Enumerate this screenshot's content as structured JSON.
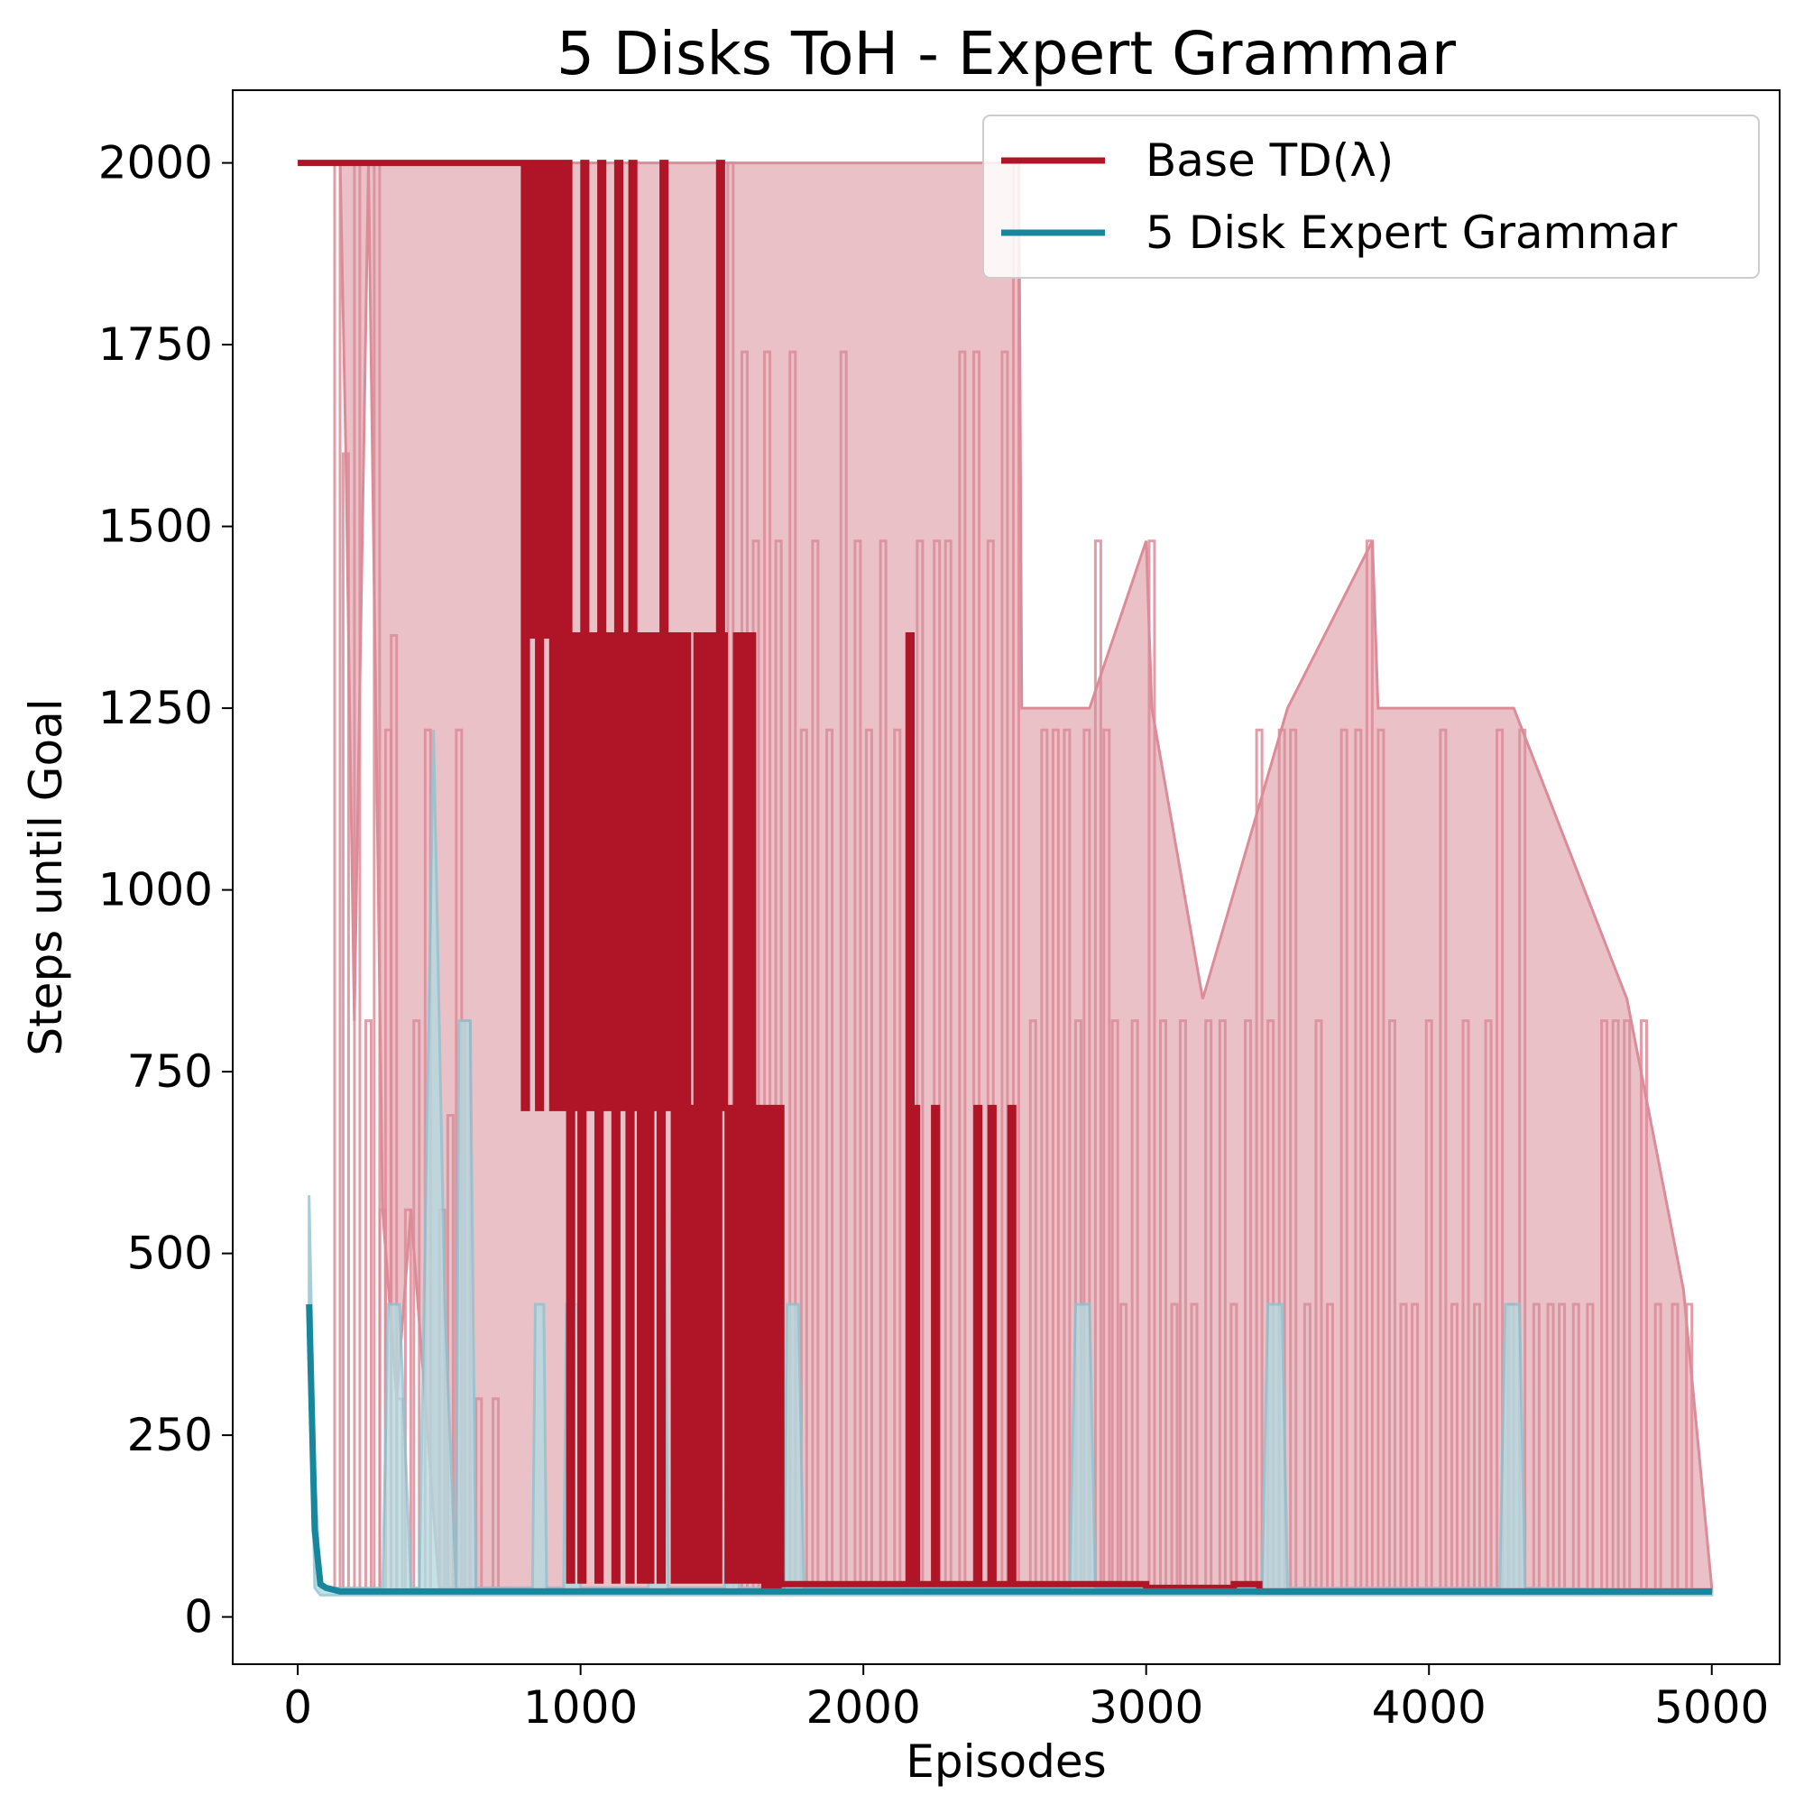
{
  "colors": {
    "base": "#b01427",
    "base_band": "#eac1c7",
    "base_band_line": "#dc8c99",
    "expert": "#17879e",
    "expert_band": "#b3dbe1",
    "expert_band_line": "#8cc4d0",
    "axes": "#000000",
    "background": "#ffffff"
  },
  "chart_data": {
    "type": "line",
    "title": "5 Disks ToH - Expert Grammar",
    "xlabel": "Episodes",
    "ylabel": "Steps until Goal",
    "xlim": [
      -230,
      5240
    ],
    "ylim": [
      -65,
      2100
    ],
    "xticks": [
      0,
      1000,
      2000,
      3000,
      4000,
      5000
    ],
    "yticks": [
      0,
      250,
      500,
      750,
      1000,
      1250,
      1500,
      1750,
      2000
    ],
    "grid": false,
    "legend_position": "top-right",
    "series": [
      {
        "name": "Base TD(λ)",
        "color_key": "base",
        "mean": [
          [
            0,
            2000
          ],
          [
            790,
            2000
          ],
          [
            800,
            700
          ],
          [
            810,
            1350
          ],
          [
            820,
            2000
          ],
          [
            830,
            1350
          ],
          [
            840,
            2000
          ],
          [
            850,
            700
          ],
          [
            860,
            1350
          ],
          [
            870,
            2000
          ],
          [
            880,
            1350
          ],
          [
            890,
            2000
          ],
          [
            900,
            700
          ],
          [
            910,
            1350
          ],
          [
            920,
            2000
          ],
          [
            930,
            700
          ],
          [
            940,
            1350
          ],
          [
            950,
            2000
          ],
          [
            960,
            50
          ],
          [
            970,
            1350
          ],
          [
            980,
            700
          ],
          [
            990,
            1350
          ],
          [
            1000,
            50
          ],
          [
            1010,
            2000
          ],
          [
            1020,
            700
          ],
          [
            1030,
            1350
          ],
          [
            1040,
            700
          ],
          [
            1050,
            1350
          ],
          [
            1060,
            50
          ],
          [
            1070,
            2000
          ],
          [
            1080,
            700
          ],
          [
            1090,
            1350
          ],
          [
            1100,
            700
          ],
          [
            1110,
            1350
          ],
          [
            1120,
            50
          ],
          [
            1130,
            2000
          ],
          [
            1140,
            1350
          ],
          [
            1150,
            700
          ],
          [
            1160,
            1350
          ],
          [
            1170,
            50
          ],
          [
            1180,
            2000
          ],
          [
            1190,
            700
          ],
          [
            1200,
            1350
          ],
          [
            1210,
            50
          ],
          [
            1220,
            700
          ],
          [
            1230,
            1350
          ],
          [
            1240,
            50
          ],
          [
            1250,
            700
          ],
          [
            1260,
            1350
          ],
          [
            1270,
            700
          ],
          [
            1280,
            50
          ],
          [
            1290,
            2000
          ],
          [
            1300,
            700
          ],
          [
            1310,
            1350
          ],
          [
            1320,
            700
          ],
          [
            1330,
            50
          ],
          [
            1340,
            1350
          ],
          [
            1350,
            700
          ],
          [
            1360,
            50
          ],
          [
            1370,
            1350
          ],
          [
            1380,
            700
          ],
          [
            1390,
            50
          ],
          [
            1400,
            700
          ],
          [
            1410,
            1350
          ],
          [
            1420,
            50
          ],
          [
            1430,
            700
          ],
          [
            1440,
            1350
          ],
          [
            1450,
            50
          ],
          [
            1460,
            700
          ],
          [
            1470,
            1350
          ],
          [
            1480,
            50
          ],
          [
            1490,
            2000
          ],
          [
            1500,
            1350
          ],
          [
            1510,
            700
          ],
          [
            1520,
            50
          ],
          [
            1530,
            700
          ],
          [
            1540,
            50
          ],
          [
            1550,
            1350
          ],
          [
            1560,
            50
          ],
          [
            1570,
            1350
          ],
          [
            1580,
            50
          ],
          [
            1590,
            700
          ],
          [
            1600,
            1350
          ],
          [
            1610,
            50
          ],
          [
            1620,
            700
          ],
          [
            1630,
            50
          ],
          [
            1640,
            700
          ],
          [
            1650,
            40
          ],
          [
            1660,
            700
          ],
          [
            1670,
            40
          ],
          [
            1680,
            700
          ],
          [
            1690,
            40
          ],
          [
            1700,
            700
          ],
          [
            1710,
            45
          ],
          [
            1800,
            45
          ],
          [
            2150,
            45
          ],
          [
            2160,
            1350
          ],
          [
            2170,
            45
          ],
          [
            2180,
            700
          ],
          [
            2190,
            45
          ],
          [
            2240,
            45
          ],
          [
            2250,
            700
          ],
          [
            2260,
            45
          ],
          [
            2390,
            45
          ],
          [
            2400,
            700
          ],
          [
            2410,
            45
          ],
          [
            2440,
            45
          ],
          [
            2450,
            700
          ],
          [
            2460,
            45
          ],
          [
            2510,
            45
          ],
          [
            2520,
            700
          ],
          [
            2530,
            45
          ],
          [
            2650,
            45
          ],
          [
            3000,
            40
          ],
          [
            3300,
            40
          ],
          [
            3310,
            45
          ],
          [
            3400,
            35
          ],
          [
            5000,
            35
          ]
        ],
        "band_upper": [
          [
            0,
            2000
          ],
          [
            780,
            2000
          ],
          [
            2550,
            2000
          ],
          [
            2560,
            1250
          ],
          [
            2800,
            1250
          ],
          [
            3000,
            1480
          ],
          [
            3020,
            1250
          ],
          [
            3200,
            850
          ],
          [
            3500,
            1250
          ],
          [
            3800,
            1480
          ],
          [
            3820,
            1250
          ],
          [
            4300,
            1250
          ],
          [
            4700,
            850
          ],
          [
            4900,
            450
          ],
          [
            5000,
            40
          ]
        ],
        "band_lower": [
          [
            0,
            2000
          ],
          [
            150,
            2000
          ],
          [
            170,
            1600
          ],
          [
            200,
            820
          ],
          [
            250,
            2000
          ],
          [
            300,
            560
          ],
          [
            350,
            300
          ],
          [
            400,
            560
          ],
          [
            450,
            300
          ],
          [
            500,
            40
          ],
          [
            5000,
            35
          ]
        ]
      },
      {
        "name": "5 Disk Expert Grammar",
        "color_key": "expert",
        "mean": [
          [
            40,
            430
          ],
          [
            60,
            120
          ],
          [
            80,
            45
          ],
          [
            100,
            40
          ],
          [
            150,
            35
          ],
          [
            5000,
            35
          ]
        ],
        "band_upper": [
          [
            40,
            580
          ],
          [
            60,
            200
          ],
          [
            80,
            40
          ],
          [
            300,
            40
          ],
          [
            320,
            430
          ],
          [
            360,
            430
          ],
          [
            400,
            40
          ],
          [
            430,
            40
          ],
          [
            480,
            1220
          ],
          [
            520,
            430
          ],
          [
            560,
            40
          ],
          [
            570,
            820
          ],
          [
            610,
            820
          ],
          [
            630,
            40
          ],
          [
            830,
            40
          ],
          [
            840,
            430
          ],
          [
            870,
            430
          ],
          [
            880,
            40
          ],
          [
            940,
            40
          ],
          [
            950,
            430
          ],
          [
            990,
            430
          ],
          [
            1000,
            40
          ],
          [
            1240,
            40
          ],
          [
            1260,
            820
          ],
          [
            1290,
            820
          ],
          [
            1310,
            40
          ],
          [
            1510,
            40
          ],
          [
            1520,
            430
          ],
          [
            1550,
            430
          ],
          [
            1560,
            40
          ],
          [
            1720,
            40
          ],
          [
            1730,
            430
          ],
          [
            1770,
            430
          ],
          [
            1790,
            40
          ],
          [
            2730,
            40
          ],
          [
            2750,
            430
          ],
          [
            2800,
            430
          ],
          [
            2820,
            40
          ],
          [
            3410,
            40
          ],
          [
            3430,
            430
          ],
          [
            3480,
            430
          ],
          [
            3500,
            40
          ],
          [
            4250,
            40
          ],
          [
            4270,
            430
          ],
          [
            4320,
            430
          ],
          [
            4340,
            40
          ],
          [
            5000,
            35
          ]
        ],
        "band_lower": [
          [
            40,
            430
          ],
          [
            60,
            40
          ],
          [
            80,
            30
          ],
          [
            5000,
            30
          ]
        ]
      }
    ],
    "spikes_base_band": [
      [
        140,
        2000
      ],
      [
        170,
        1600
      ],
      [
        210,
        2000
      ],
      [
        250,
        820
      ],
      [
        280,
        2000
      ],
      [
        300,
        560
      ],
      [
        320,
        1220
      ],
      [
        340,
        1350
      ],
      [
        360,
        300
      ],
      [
        390,
        560
      ],
      [
        420,
        820
      ],
      [
        460,
        1220
      ],
      [
        510,
        560
      ],
      [
        540,
        690
      ],
      [
        570,
        1220
      ],
      [
        600,
        820
      ],
      [
        640,
        300
      ],
      [
        700,
        300
      ],
      [
        1530,
        2000
      ],
      [
        1580,
        1740
      ],
      [
        1620,
        1480
      ],
      [
        1660,
        1740
      ],
      [
        1700,
        1480
      ],
      [
        1750,
        1740
      ],
      [
        1790,
        1220
      ],
      [
        1830,
        1480
      ],
      [
        1880,
        1220
      ],
      [
        1930,
        1740
      ],
      [
        1980,
        1480
      ],
      [
        2020,
        1220
      ],
      [
        2070,
        1480
      ],
      [
        2120,
        1220
      ],
      [
        2200,
        1480
      ],
      [
        2260,
        1480
      ],
      [
        2300,
        1480
      ],
      [
        2350,
        1740
      ],
      [
        2400,
        1740
      ],
      [
        2450,
        1480
      ],
      [
        2500,
        1740
      ],
      [
        2540,
        2000
      ],
      [
        2600,
        820
      ],
      [
        2640,
        1220
      ],
      [
        2680,
        1220
      ],
      [
        2720,
        1220
      ],
      [
        2760,
        820
      ],
      [
        2790,
        1220
      ],
      [
        2830,
        1480
      ],
      [
        2860,
        1220
      ],
      [
        2890,
        820
      ],
      [
        2920,
        430
      ],
      [
        2960,
        820
      ],
      [
        3020,
        1480
      ],
      [
        3060,
        820
      ],
      [
        3100,
        430
      ],
      [
        3130,
        820
      ],
      [
        3170,
        430
      ],
      [
        3220,
        820
      ],
      [
        3270,
        820
      ],
      [
        3310,
        430
      ],
      [
        3360,
        820
      ],
      [
        3400,
        1220
      ],
      [
        3440,
        820
      ],
      [
        3480,
        1220
      ],
      [
        3520,
        1220
      ],
      [
        3570,
        430
      ],
      [
        3610,
        820
      ],
      [
        3650,
        430
      ],
      [
        3700,
        1220
      ],
      [
        3750,
        1220
      ],
      [
        3790,
        1480
      ],
      [
        3830,
        1220
      ],
      [
        3870,
        820
      ],
      [
        3910,
        430
      ],
      [
        3950,
        430
      ],
      [
        4000,
        820
      ],
      [
        4050,
        1220
      ],
      [
        4090,
        430
      ],
      [
        4130,
        820
      ],
      [
        4170,
        430
      ],
      [
        4210,
        820
      ],
      [
        4250,
        1220
      ],
      [
        4290,
        430
      ],
      [
        4330,
        1220
      ],
      [
        4380,
        430
      ],
      [
        4430,
        430
      ],
      [
        4470,
        430
      ],
      [
        4520,
        430
      ],
      [
        4570,
        430
      ],
      [
        4620,
        820
      ],
      [
        4660,
        820
      ],
      [
        4700,
        820
      ],
      [
        4760,
        820
      ],
      [
        4810,
        430
      ],
      [
        4870,
        430
      ],
      [
        4920,
        430
      ]
    ]
  }
}
